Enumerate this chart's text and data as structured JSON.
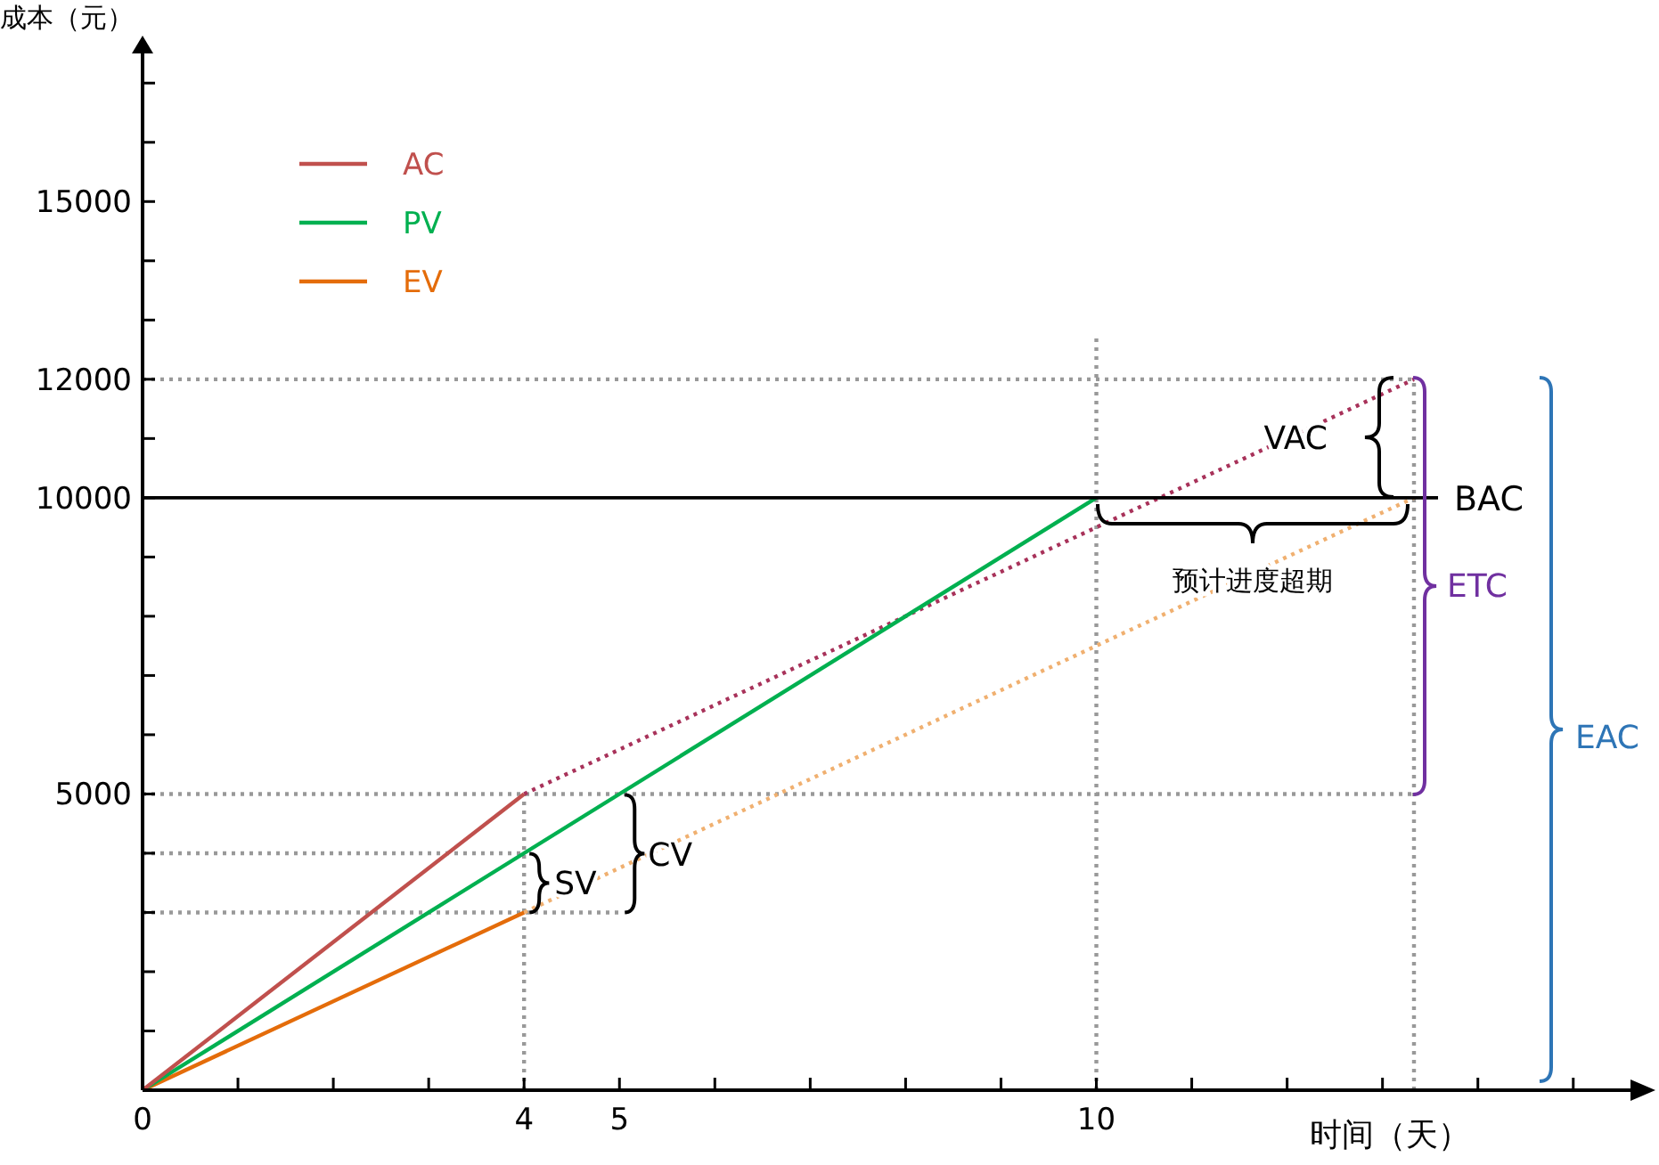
{
  "chart_data": {
    "type": "line",
    "xlabel": "时间（天）",
    "ylabel": "成本（元）",
    "xlim": [
      0,
      15.6
    ],
    "ylim": [
      0,
      17500
    ],
    "xticks": [
      0,
      {
        "value": 1,
        "label": null
      },
      {
        "value": 2,
        "label": null
      },
      {
        "value": 3,
        "label": null
      },
      4,
      5,
      {
        "value": 6,
        "label": null
      },
      {
        "value": 7,
        "label": null
      },
      {
        "value": 8,
        "label": null
      },
      {
        "value": 9,
        "label": null
      },
      10,
      {
        "value": 11,
        "label": null
      },
      {
        "value": 12,
        "label": null
      },
      {
        "value": 13,
        "label": null
      },
      {
        "value": 14,
        "label": null
      },
      {
        "value": 15,
        "label": null
      }
    ],
    "yticks": [
      {
        "value": 0,
        "label": null
      },
      {
        "value": 1000,
        "label": null
      },
      {
        "value": 2000,
        "label": null
      },
      {
        "value": 3000,
        "label": null
      },
      {
        "value": 4000,
        "label": null
      },
      5000,
      {
        "value": 6000,
        "label": null
      },
      {
        "value": 7000,
        "label": null
      },
      {
        "value": 8000,
        "label": null
      },
      {
        "value": 9000,
        "label": null
      },
      10000,
      {
        "value": 11000,
        "label": null
      },
      12000,
      {
        "value": 13000,
        "label": null
      },
      {
        "value": 14000,
        "label": null
      },
      15000,
      {
        "value": 16000,
        "label": null
      },
      {
        "value": 17000,
        "label": null
      }
    ],
    "grid": false,
    "legend": "top left",
    "series": [
      {
        "name": "AC",
        "color": "#c0504d",
        "x": [
          0,
          4
        ],
        "values": [
          0,
          5000
        ],
        "line_style": "solid"
      },
      {
        "name": "PV",
        "color": "#00b050",
        "x": [
          0,
          10
        ],
        "values": [
          0,
          10000
        ],
        "line_style": "solid"
      },
      {
        "name": "EV",
        "color": "#e46c0a",
        "x": [
          0,
          4
        ],
        "values": [
          0,
          3000
        ],
        "line_style": "solid"
      },
      {
        "color": "#a8325a",
        "x": [
          4,
          13.33
        ],
        "values": [
          5000,
          12000
        ],
        "line_style": "dotted"
      },
      {
        "color": "#f0b070",
        "x": [
          4,
          13.33
        ],
        "values": [
          3000,
          10000
        ],
        "line_style": "dotted"
      },
      {
        "color": "#999999",
        "x": [
          0,
          13.33
        ],
        "values": [
          12000,
          12000
        ],
        "line_style": "dotted"
      },
      {
        "color": "#999999",
        "x": [
          0,
          13.33
        ],
        "values": [
          5000,
          5000
        ],
        "line_style": "dotted"
      },
      {
        "color": "#999999",
        "x": [
          0,
          4
        ],
        "values": [
          4000,
          4000
        ],
        "line_style": "dotted"
      },
      {
        "color": "#999999",
        "x": [
          0,
          5
        ],
        "values": [
          3000,
          3000
        ],
        "line_style": "dotted"
      },
      {
        "color": "#999999",
        "x": [
          4,
          4
        ],
        "values": [
          0,
          5000
        ],
        "line_style": "dotted"
      },
      {
        "color": "#999999",
        "x": [
          10,
          10
        ],
        "values": [
          0,
          12700
        ],
        "line_style": "dotted"
      },
      {
        "color": "#999999",
        "x": [
          13.33,
          13.33
        ],
        "values": [
          0,
          12000
        ],
        "line_style": "dotted"
      }
    ],
    "ref_lines": [
      {
        "axis": "y",
        "value": 10000,
        "label": "BAC",
        "color": "#000000",
        "line_style": "solid"
      }
    ],
    "annotations": [
      {
        "text": "SV",
        "x": 4,
        "y": 3000
      },
      {
        "text": "CV",
        "x": 5,
        "y": 3000
      },
      "VAC",
      "预计进度超期",
      "ETC",
      "EAC"
    ]
  }
}
